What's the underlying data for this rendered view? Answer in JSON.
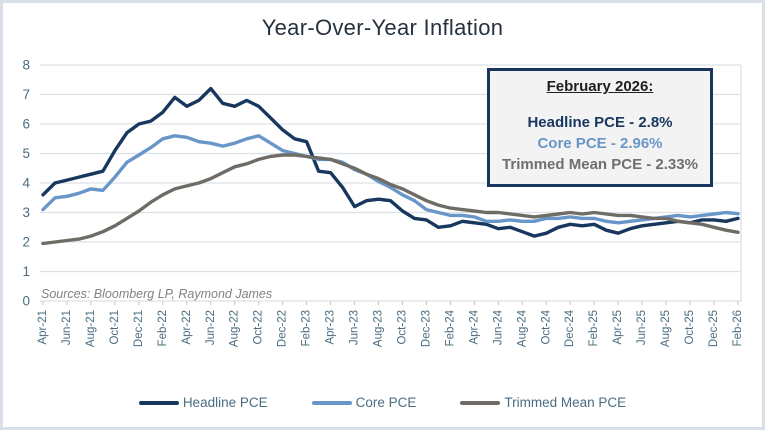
{
  "window": {
    "title": "Year-Over-Year Inflation"
  },
  "colors": {
    "headline": "#17375e",
    "core": "#6996c8",
    "trimmed": "#6f6c66",
    "axis_label": "#4a6d80",
    "gridline": "#dce2e8",
    "box_border": "#17375e",
    "box_fill": "#f3f3f3",
    "frame_border": "#d9e0e8",
    "source_text": "#828282",
    "title_text": "#26323e"
  },
  "chart_data": {
    "type": "line",
    "title": "Year-Over-Year Inflation",
    "xlabel": "",
    "ylabel": "",
    "ylim": [
      0,
      8
    ],
    "y_ticks": [
      0,
      1,
      2,
      3,
      4,
      5,
      6,
      7,
      8
    ],
    "grid": "horizontal",
    "legend_position": "bottom",
    "source_note": "Sources: Bloomberg LP, Raymond James",
    "x_unit": "month",
    "x_range": [
      "Apr-21",
      "Feb-26"
    ],
    "x_tick_labels": [
      "Apr-21",
      "Jun-21",
      "Aug-21",
      "Oct-21",
      "Dec-21",
      "Feb-22",
      "Apr-22",
      "Jun-22",
      "Aug-22",
      "Oct-22",
      "Dec-22",
      "Feb-23",
      "Apr-23",
      "Jun-23",
      "Aug-23",
      "Oct-23",
      "Dec-23",
      "Feb-24",
      "Apr-24",
      "Jun-24",
      "Aug-24",
      "Oct-24",
      "Dec-24",
      "Feb-25",
      "Apr-25",
      "Jun-25",
      "Aug-25",
      "Oct-25",
      "Dec-25",
      "Feb-26"
    ],
    "series": [
      {
        "name": "Headline PCE",
        "color": "#17375e",
        "values": [
          3.6,
          4.0,
          4.1,
          4.2,
          4.3,
          4.4,
          5.1,
          5.7,
          6.0,
          6.1,
          6.4,
          6.9,
          6.6,
          6.8,
          7.2,
          6.7,
          6.6,
          6.8,
          6.6,
          6.2,
          5.8,
          5.5,
          5.4,
          4.4,
          4.35,
          3.85,
          3.2,
          3.4,
          3.45,
          3.4,
          3.05,
          2.8,
          2.75,
          2.5,
          2.55,
          2.7,
          2.65,
          2.6,
          2.45,
          2.5,
          2.35,
          2.2,
          2.3,
          2.5,
          2.6,
          2.55,
          2.6,
          2.4,
          2.3,
          2.45,
          2.55,
          2.6,
          2.65,
          2.7,
          2.65,
          2.75,
          2.75,
          2.7,
          2.8
        ]
      },
      {
        "name": "Core PCE",
        "color": "#6996c8",
        "values": [
          3.1,
          3.5,
          3.55,
          3.65,
          3.8,
          3.75,
          4.2,
          4.7,
          4.95,
          5.2,
          5.5,
          5.6,
          5.55,
          5.4,
          5.35,
          5.25,
          5.35,
          5.5,
          5.6,
          5.35,
          5.1,
          5.0,
          4.9,
          4.8,
          4.8,
          4.7,
          4.45,
          4.3,
          4.05,
          3.85,
          3.6,
          3.4,
          3.1,
          3.0,
          2.9,
          2.9,
          2.85,
          2.7,
          2.7,
          2.75,
          2.7,
          2.7,
          2.8,
          2.8,
          2.85,
          2.8,
          2.8,
          2.7,
          2.65,
          2.7,
          2.75,
          2.8,
          2.85,
          2.9,
          2.85,
          2.9,
          2.95,
          3.0,
          2.96
        ]
      },
      {
        "name": "Trimmed Mean PCE",
        "color": "#6f6c66",
        "values": [
          1.95,
          2.0,
          2.05,
          2.1,
          2.2,
          2.35,
          2.55,
          2.8,
          3.05,
          3.35,
          3.6,
          3.8,
          3.9,
          4.0,
          4.15,
          4.35,
          4.55,
          4.65,
          4.8,
          4.9,
          4.95,
          4.95,
          4.9,
          4.85,
          4.8,
          4.65,
          4.5,
          4.3,
          4.15,
          3.95,
          3.8,
          3.6,
          3.4,
          3.25,
          3.15,
          3.1,
          3.05,
          3.0,
          3.0,
          2.95,
          2.9,
          2.85,
          2.9,
          2.95,
          3.0,
          2.95,
          3.0,
          2.95,
          2.9,
          2.9,
          2.85,
          2.8,
          2.8,
          2.7,
          2.65,
          2.6,
          2.5,
          2.4,
          2.33
        ]
      }
    ]
  },
  "annotation_box": {
    "heading": "February 2026:",
    "lines": [
      {
        "text": "Headline PCE - 2.8%",
        "color": "#17375e"
      },
      {
        "text": "Core PCE - 2.96%",
        "color": "#6996c8"
      },
      {
        "text": "Trimmed Mean PCE - 2.33%",
        "color": "#6f6f6f"
      }
    ]
  },
  "legend": {
    "items": [
      {
        "label": "Headline PCE",
        "color": "#17375e"
      },
      {
        "label": "Core PCE",
        "color": "#6996c8"
      },
      {
        "label": "Trimmed Mean PCE",
        "color": "#6f6c66"
      }
    ]
  }
}
